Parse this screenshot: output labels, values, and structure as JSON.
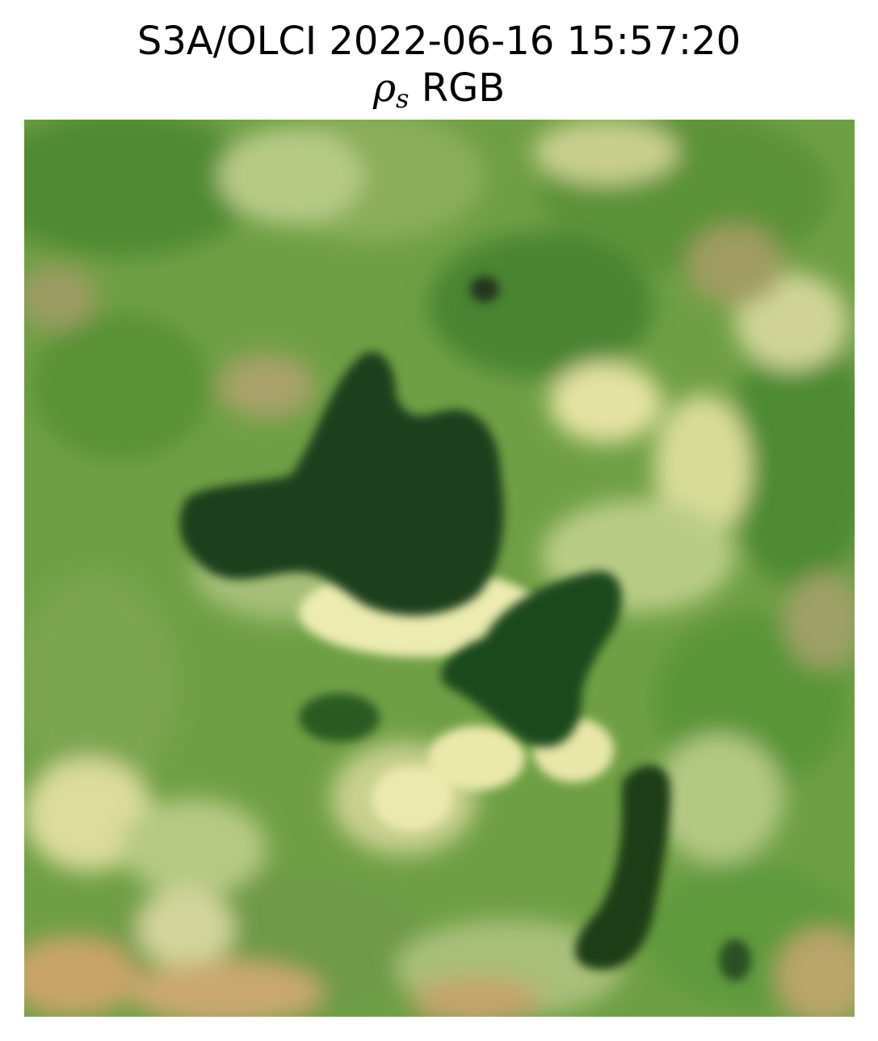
{
  "figure": {
    "title_line1": "S3A/OLCI 2022-06-16 15:57:20",
    "title_symbol": "ρ",
    "title_symbol_subscript": "s",
    "title_suffix": " RGB"
  },
  "image": {
    "content": "satellite true-color RGB composite: green vegetated land with dark-green water bodies",
    "colors": {
      "vegetation_dark": "#3f7d2a",
      "vegetation_mid": "#6f9f45",
      "vegetation_light": "#a8c27a",
      "bright_land": "#e9e6a8",
      "bare_soil": "#c9a46a",
      "water": "#1b3f1a"
    }
  }
}
